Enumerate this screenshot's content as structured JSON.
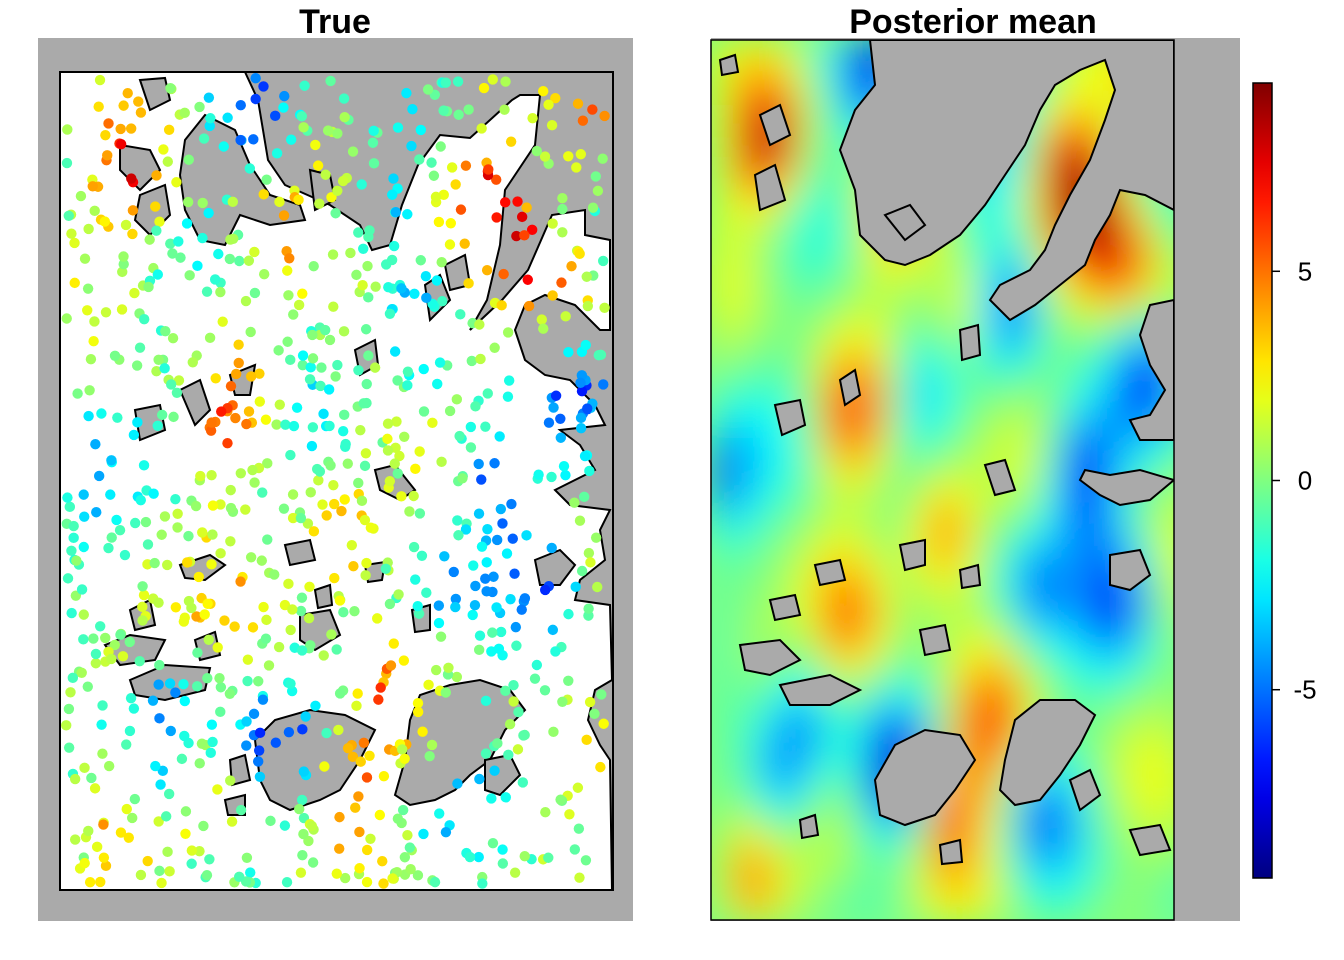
{
  "chart_data": [
    {
      "type": "scatter",
      "title": "True",
      "xlabel": "",
      "ylabel": "",
      "grid": false,
      "legend": "none",
      "background_color": "#aaaaaa",
      "water_color": "#ffffff",
      "land_color": "#aaaaaa",
      "point_color_scale": "jet",
      "color_range": [
        -9.5,
        9.5
      ],
      "n_points": 1000
    },
    {
      "type": "heatmap",
      "title": "Posterior mean",
      "xlabel": "",
      "ylabel": "",
      "grid": false,
      "legend": "right",
      "background_color": "#aaaaaa",
      "land_color": "#aaaaaa",
      "color_scale": "jet",
      "color_range": [
        -9.5,
        9.5
      ]
    }
  ],
  "colorbar": {
    "ticks": [
      5,
      0,
      -5
    ],
    "tick_labels": [
      "5",
      "0",
      "-5"
    ],
    "range": [
      -9.5,
      9.5
    ],
    "colors": [
      "#00008f",
      "#0000ff",
      "#0080ff",
      "#00ffff",
      "#80ff80",
      "#ffff00",
      "#ff8000",
      "#ff0000",
      "#800000"
    ]
  }
}
